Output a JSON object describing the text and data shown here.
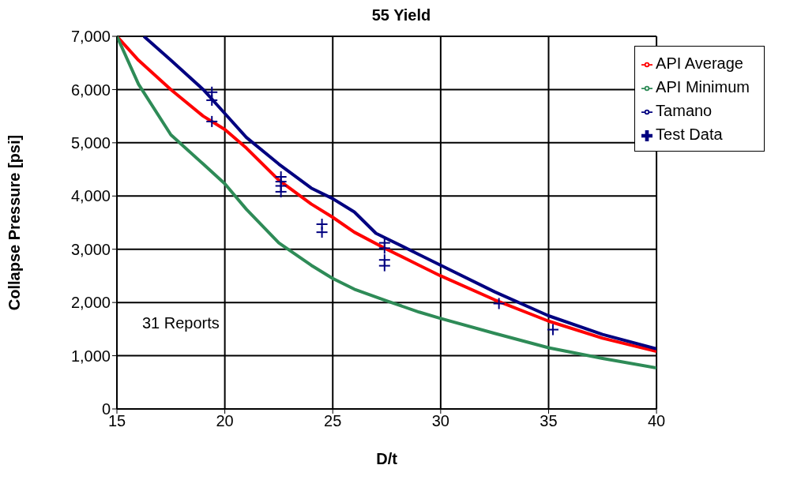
{
  "chart_data": {
    "type": "line",
    "title": "55 Yield",
    "xlabel": "D/t",
    "ylabel": "Collapse Pressure [psi]",
    "xlim": [
      15,
      40
    ],
    "xticks": [
      15,
      20,
      25,
      30,
      35,
      40
    ],
    "ylim": [
      0,
      7000
    ],
    "yticks": [
      0,
      {
        "value": 1000,
        "label": "1,000"
      },
      {
        "value": 2000,
        "label": "2,000"
      },
      {
        "value": 3000,
        "label": "3,000"
      },
      {
        "value": 4000,
        "label": "4,000"
      },
      {
        "value": 5000,
        "label": "5,000"
      },
      {
        "value": 6000,
        "label": "6,000"
      },
      {
        "value": 7000,
        "label": "7,000"
      }
    ],
    "grid": true,
    "legend": "top right",
    "annotations": [
      "31 Reports"
    ],
    "series": [
      {
        "name": "Test Data",
        "type": "scatter",
        "marker": "cross",
        "color": "#000080",
        "x": [
          19.4,
          19.4,
          19.4,
          22.6,
          22.6,
          22.6,
          22.6,
          24.5,
          24.5,
          27.4,
          27.4,
          27.4,
          27.4,
          32.7,
          35.2
        ],
        "values": [
          5950,
          5800,
          5400,
          4360,
          4270,
          4190,
          4080,
          3470,
          3320,
          3120,
          3020,
          2800,
          2690,
          1980,
          1490
        ]
      },
      {
        "name": "API Average",
        "color": "#ff0000",
        "x": [
          15,
          16,
          17.5,
          19,
          20,
          21,
          22.5,
          24,
          25,
          26,
          27.5,
          29,
          30,
          32.5,
          35,
          37.5,
          40
        ],
        "values": [
          7000,
          6550,
          6000,
          5500,
          5250,
          4900,
          4300,
          3850,
          3600,
          3320,
          3000,
          2700,
          2500,
          2050,
          1650,
          1330,
          1080
        ]
      },
      {
        "name": "API Minimum",
        "color": "#2e8b57",
        "x": [
          15,
          16,
          17.5,
          19,
          20,
          21,
          22.5,
          24,
          25,
          26,
          27.5,
          29,
          30,
          32.5,
          35,
          37.5,
          40
        ],
        "values": [
          7000,
          6100,
          5150,
          4600,
          4230,
          3750,
          3120,
          2700,
          2450,
          2250,
          2030,
          1820,
          1700,
          1420,
          1150,
          950,
          770
        ]
      },
      {
        "name": "Tamano",
        "color": "#000080",
        "x": [
          16.25,
          17.5,
          19,
          20,
          21,
          22.5,
          24,
          25,
          26,
          27,
          27.5,
          29,
          30,
          32.5,
          35,
          37.5,
          40
        ],
        "values": [
          7000,
          6550,
          6000,
          5550,
          5100,
          4600,
          4150,
          3950,
          3700,
          3300,
          3200,
          2900,
          2700,
          2200,
          1750,
          1400,
          1130
        ]
      }
    ]
  }
}
